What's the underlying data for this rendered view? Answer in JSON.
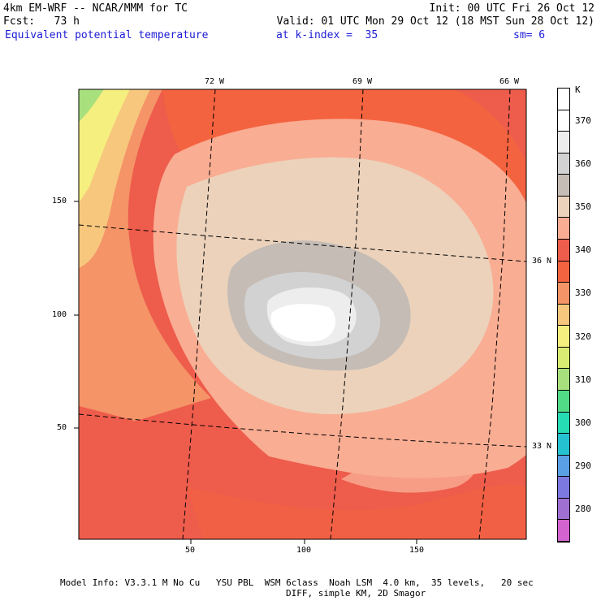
{
  "header": {
    "left_line1": "4km EM-WRF -- NCAR/MMM for TC",
    "left_line2": "Fcst:   73 h",
    "right_line1": "Init: 00 UTC Fri 26 Oct 12",
    "right_line2": "Valid: 01 UTC Mon 29 Oct 12 (18 MST Sun 28 Oct 12)",
    "field_name": "Equivalent potential temperature",
    "level": "at k-index =  35",
    "smoothing": "sm= 6"
  },
  "map": {
    "x_ticks": [
      "50",
      "100",
      "150"
    ],
    "y_ticks": [
      "50",
      "100",
      "150"
    ],
    "lon_labels": [
      "72 W",
      "69 W",
      "66 W"
    ],
    "lat_labels": [
      "36 N",
      "33 N"
    ]
  },
  "colorbar": {
    "unit": "K",
    "levels": [
      {
        "label": "",
        "color": "#ffffff"
      },
      {
        "label": "370",
        "color": "#ffffff"
      },
      {
        "label": "",
        "color": "#ededed"
      },
      {
        "label": "360",
        "color": "#d2d2d2"
      },
      {
        "label": "",
        "color": "#c4bcb5"
      },
      {
        "label": "350",
        "color": "#ecd2bb"
      },
      {
        "label": "",
        "color": "#f9ad93"
      },
      {
        "label": "340",
        "color": "#ee5c4c"
      },
      {
        "label": "",
        "color": "#f4633f"
      },
      {
        "label": "330",
        "color": "#f49467"
      },
      {
        "label": "",
        "color": "#f7c77e"
      },
      {
        "label": "320",
        "color": "#f5ef7f"
      },
      {
        "label": "",
        "color": "#d9eb72"
      },
      {
        "label": "310",
        "color": "#a8e07e"
      },
      {
        "label": "",
        "color": "#52db87"
      },
      {
        "label": "300",
        "color": "#26dcb5"
      },
      {
        "label": "",
        "color": "#25c3d2"
      },
      {
        "label": "290",
        "color": "#5aa0e4"
      },
      {
        "label": "",
        "color": "#7c7ae0"
      },
      {
        "label": "280",
        "color": "#a06fd2"
      },
      {
        "label": "",
        "color": "#d364cf"
      }
    ]
  },
  "footer": {
    "line1": "Model Info: V3.3.1 M No Cu   YSU PBL  WSM 6class  Noah LSM  4.0 km,  35 levels,   20 sec",
    "line2": "DIFF, simple KM, 2D Smagor"
  }
}
